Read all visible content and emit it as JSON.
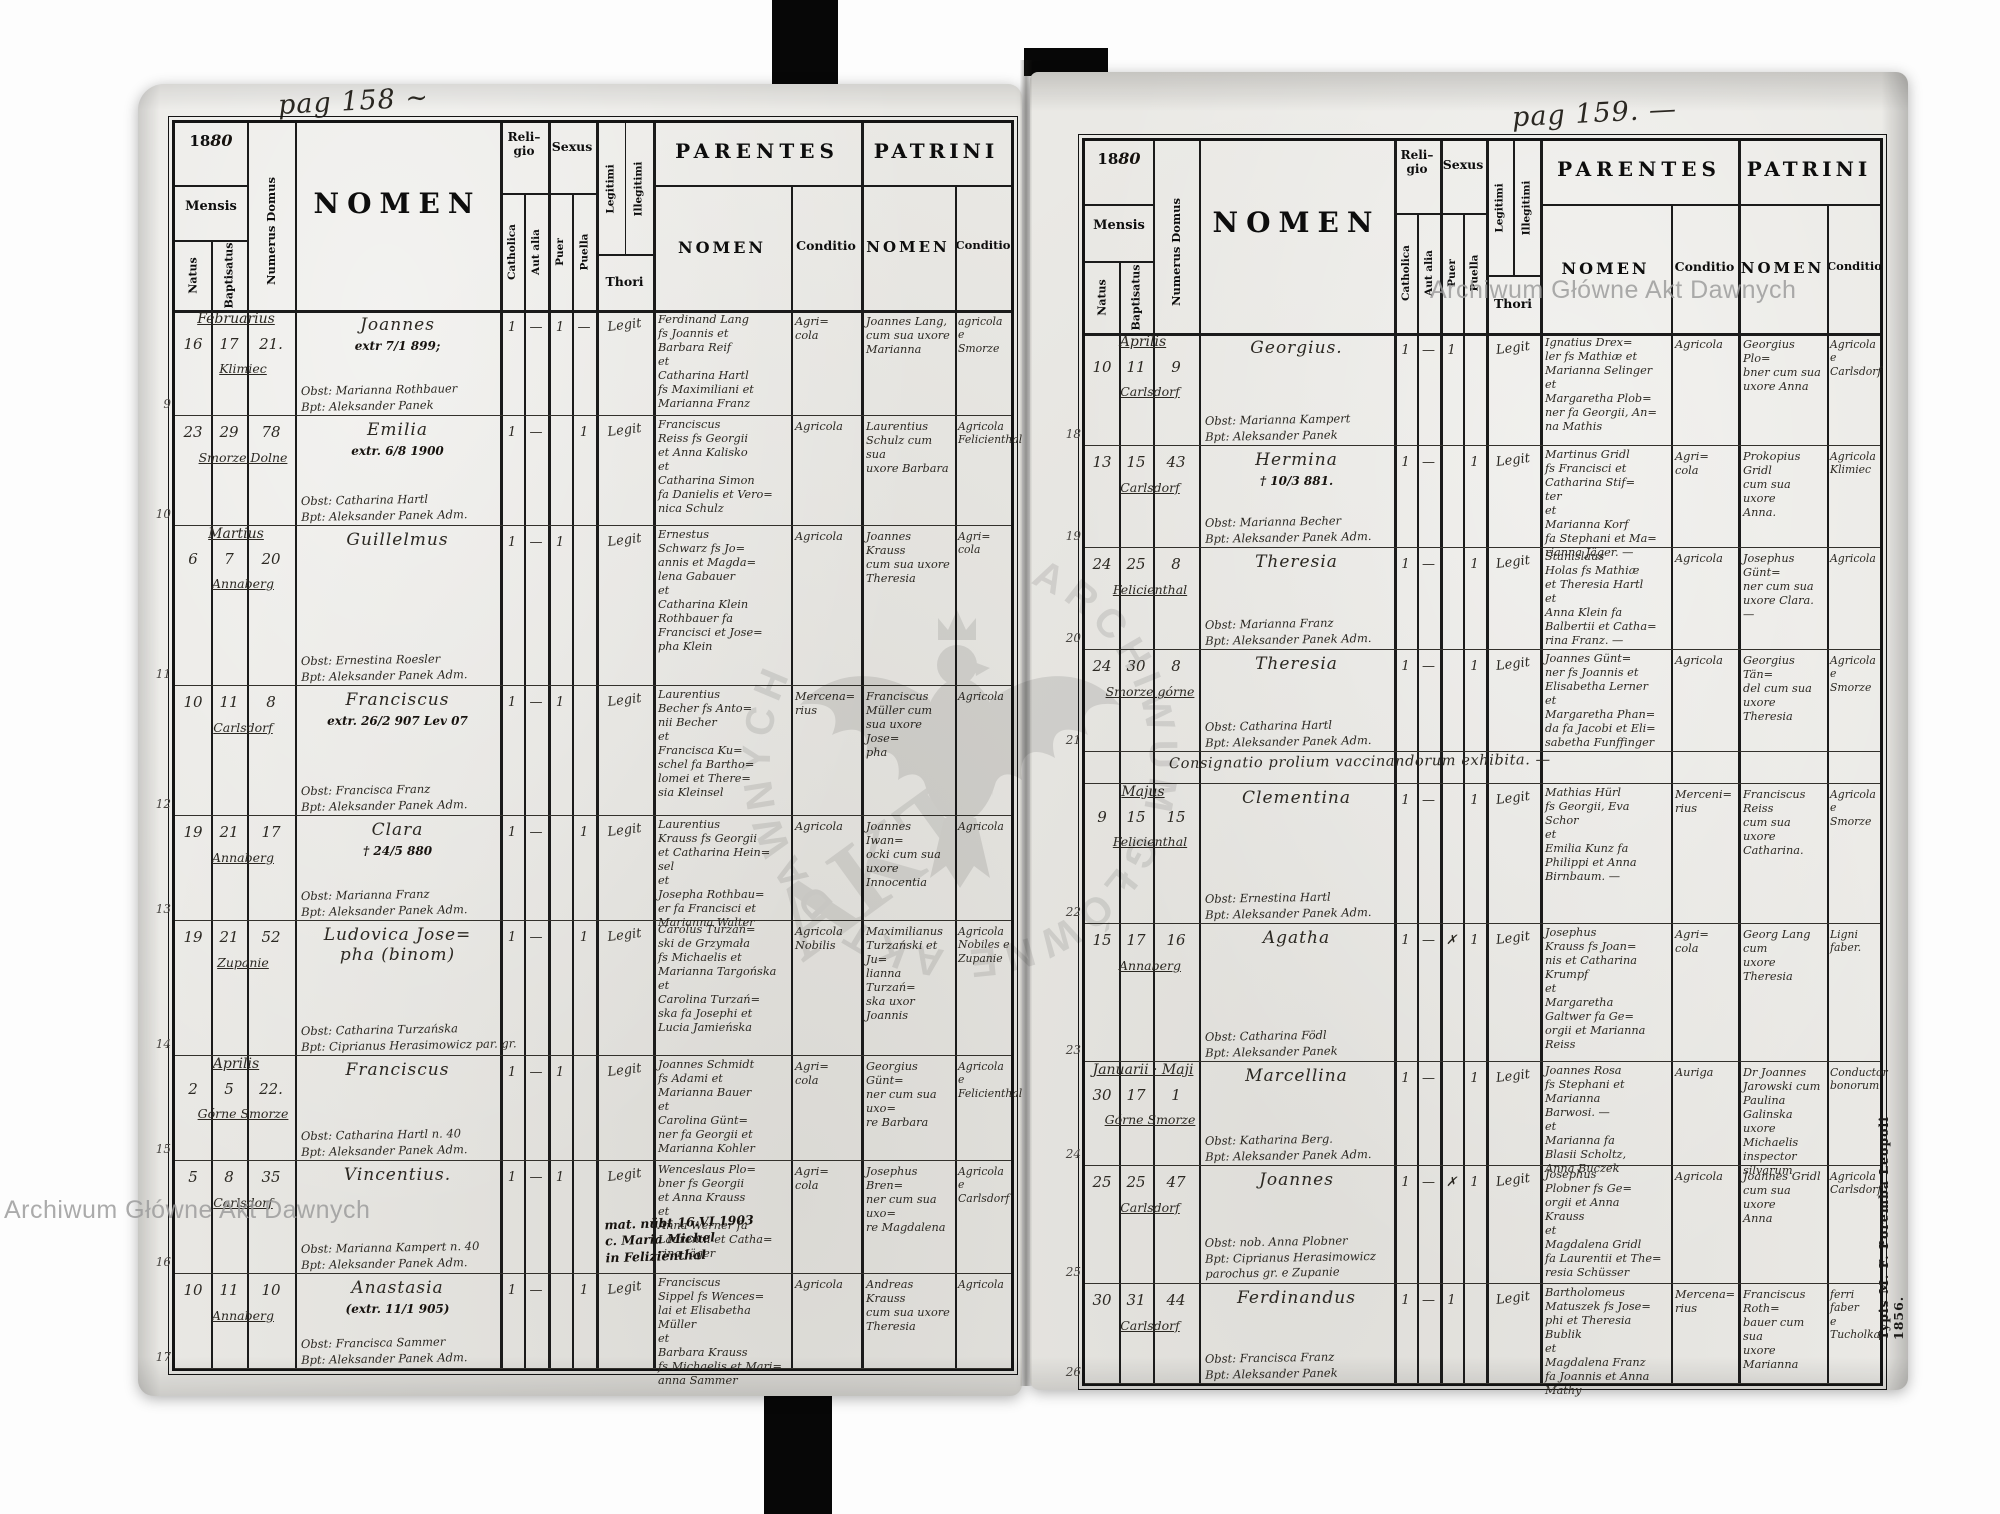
{
  "headers": {
    "year_printed": "18",
    "year_written": "80",
    "mensis": "Mensis",
    "natus": "Natus",
    "baptisatus": "Baptisatus",
    "numerus_domus": "Numerus Domus",
    "nomen": "NOMEN",
    "religio_line1": "Reli–",
    "religio_line2": "gio",
    "catholica": "Catholica",
    "aut_alia": "Aut alia",
    "sexus": "Sexus",
    "puer": "Puer",
    "puella": "Puella",
    "legitimi": "Legitimi",
    "illegitimi": "Illegitimi",
    "thori": "Thori",
    "parentes": "PARENTES",
    "patrini": "PATRINI",
    "sub_nomen": "NOMEN",
    "conditio": "Conditio"
  },
  "left_page": {
    "page_label": "pag 158 ∼",
    "rows": [
      {
        "no": "9",
        "month": "Februarius",
        "natus": "16",
        "baptisatus": "17",
        "domus": "21.",
        "place": "Klimiec",
        "name": "Joannes",
        "name_note": "extr 7/1 899;",
        "obst": "Obst: Marianna Rothbauer",
        "bpt": "Bpt: Aleksander Panek",
        "cath": "1",
        "alia": "—",
        "puer": "1",
        "puella": "—",
        "legit": "Legit",
        "parentes": "Ferdinand Lang\nfs Joannis et\nBarbara Reif\net\nCatharina Hartl\nfs Maximiliani et\nMarianna Franz",
        "par_cond": "Agri=\ncola",
        "patrini": "Joannes Lang,\ncum sua uxore\nMarianna",
        "pat_cond": "agricola e\nSmorze"
      },
      {
        "no": "10",
        "natus": "23",
        "baptisatus": "29",
        "domus": "78",
        "place": "Smorze Dolne",
        "name": "Emilia",
        "name_note": "extr. 6/8 1900",
        "obst": "Obst: Catharina Hartl",
        "bpt": "Bpt: Aleksander Panek Adm.",
        "cath": "1",
        "alia": "—",
        "puella": "1",
        "legit": "Legit",
        "parentes": "Franciscus\nReiss fs Georgii\net Anna Kalisko\net\nCatharina Simon\nfa Danielis et Vero=\nnica Schulz",
        "par_cond": "Agricola",
        "patrini": "Laurentius\nSchulz cum sua\nuxore Barbara",
        "pat_cond": "Agricola\nFelicienthal"
      },
      {
        "no": "11",
        "month": "Martius",
        "natus": "6",
        "baptisatus": "7",
        "domus": "20",
        "place": "Annaberg",
        "name": "Guillelmus",
        "obst": "Obst: Ernestina Roesler",
        "bpt": "Bpt: Aleksander Panek Adm.",
        "cath": "1",
        "alia": "—",
        "puer": "1",
        "legit": "Legit",
        "parentes": "Ernestus\nSchwarz fs Jo=\nannis et Magda=\nlena Gabauer\net\nCatharina Klein\nRothbauer fa\nFrancisci et Jose=\npha Klein",
        "par_cond": "Agricola",
        "patrini": "Joannes Krauss\ncum sua uxore\nTheresia",
        "pat_cond": "Agri=\ncola"
      },
      {
        "no": "12",
        "natus": "10",
        "baptisatus": "11",
        "domus": "8",
        "place": "Carlsdorf",
        "name": "Franciscus",
        "name_note": "extr. 26/2 907 Lev 07",
        "obst": "Obst: Francisca Franz",
        "bpt": "Bpt: Aleksander Panek Adm.",
        "cath": "1",
        "alia": "—",
        "puer": "1",
        "legit": "Legit",
        "parentes": "Laurentius\nBecher fs Anto=\nnii Becher\net\nFrancisca Ku=\nschel fa Bartho=\nlomei et There=\nsia Kleinsel",
        "par_cond": "Mercena=\nrius",
        "patrini": "Franciscus\nMüller cum\nsua uxore Jose=\npha",
        "pat_cond": "Agricola"
      },
      {
        "no": "13",
        "natus": "19",
        "baptisatus": "21",
        "domus": "17",
        "place": "Annaberg",
        "name": "Clara",
        "name_note": "† 24/5 880",
        "obst": "Obst: Marianna Franz",
        "bpt": "Bpt: Aleksander Panek Adm.",
        "cath": "1",
        "alia": "—",
        "puella": "1",
        "legit": "Legit",
        "parentes": "Laurentius\nKrauss fs Georgii\net Catharina Hein=\nsel\net\nJosepha Rothbau=\ner fa Francisci et\nMarianna Walter",
        "par_cond": "Agricola",
        "patrini": "Joannes Iwan=\nocki cum sua uxore\nInnocentia",
        "pat_cond": "Agricola"
      },
      {
        "no": "14",
        "natus": "19",
        "baptisatus": "21",
        "domus": "52",
        "place": "Zupanie",
        "name": "Ludovica Jose=\npha (binom)",
        "obst": "Obst: Catharina Turzańska",
        "bpt": "Bpt: Ciprianus Herasimowicz par. gr.",
        "cath": "1",
        "alia": "—",
        "puella": "1",
        "legit": "Legit",
        "parentes": "Carolus Turzań=\nski de Grzymała\nfs Michaelis et\nMarianna Targońska\net\nCarolina Turzań=\nska fa Josephi et\nLucia Jamieńska",
        "par_cond": "Agricola\nNobilis",
        "patrini": "Maximilianus\nTurzański et Ju=\nlianna Turzań=\nska uxor Joannis",
        "pat_cond": "Agricola\nNobiles e\nZupanie"
      },
      {
        "no": "15",
        "month": "Aprilis",
        "natus": "2",
        "baptisatus": "5",
        "domus": "22.",
        "place": "Górne Smorze",
        "name": "Franciscus",
        "obst": "Obst: Catharina Hartl n. 40",
        "bpt": "Bpt: Aleksander Panek Adm.",
        "cath": "1",
        "alia": "—",
        "puer": "1",
        "legit": "Legit",
        "parentes": "Joannes Schmidt\nfs Adami et\nMarianna Bauer\net\nCarolina Günt=\nner fa Georgii et\nMarianna Kohler",
        "par_cond": "Agri=\ncola",
        "patrini": "Georgius Günt=\nner cum sua uxo=\nre Barbara",
        "pat_cond": "Agricola\ne\nFelicienthal"
      },
      {
        "no": "16",
        "natus": "5",
        "baptisatus": "8",
        "domus": "35",
        "place": "Carlsdorf",
        "name": "Vincentius.",
        "obst": "Obst: Marianna Kampert n. 40",
        "bpt": "Bpt: Aleksander Panek Adm.",
        "cath": "1",
        "alia": "—",
        "puer": "1",
        "legit": "Legit",
        "parentes": "Wenceslaus Plo=\nbner fs Georgii\net Anna Krauss\net\nAnna Werner fa\nLaurentii et Catha=\nrina Jäger",
        "par_cond": "Agri=\ncola",
        "patrini": "Josephus Bren=\nner cum sua uxo=\nre Magdalena",
        "pat_cond": "Agricola\ne Carlsdorf",
        "note": "mat. nübt 16.VI 1903\nc. Maria Michel\nin Felizienthal"
      },
      {
        "no": "17",
        "natus": "10",
        "baptisatus": "11",
        "domus": "10",
        "place": "Annaberg",
        "name": "Anastasia",
        "name_note": "(extr. 11/1 905)",
        "obst": "Obst: Francisca Sammer",
        "bpt": "Bpt: Aleksander Panek Adm.",
        "cath": "1",
        "alia": "—",
        "puella": "1",
        "legit": "Legit",
        "parentes": "Franciscus\nSippel fs Wences=\nlai et Elisabetha Müller\net\nBarbara Krauss\nfs Michaelis et Mari=\nanna Sammer",
        "par_cond": "Agricola",
        "patrini": "Andreas Krauss\ncum sua uxore\nTheresia",
        "pat_cond": "Agricola"
      }
    ]
  },
  "right_page": {
    "page_label": "pag 159. —",
    "imprint": "Typis M. F. Poremba Leopoli 1856.",
    "rows": [
      {
        "no": "18",
        "month": "Aprilis",
        "natus": "10",
        "baptisatus": "11",
        "domus": "9",
        "place": "Carlsdorf",
        "name": "Georgius.",
        "obst": "Obst: Marianna Kampert",
        "bpt": "Bpt: Aleksander Panek",
        "cath": "1",
        "alia": "—",
        "puer": "1",
        "legit": "Legit",
        "parentes": "Ignatius Drex=\nler fs Mathiæ et\nMarianna Selinger\net\nMargaretha Plob=\nner fa Georgii, An=\nna Mathis",
        "par_cond": "Agricola",
        "patrini": "Georgius Plo=\nbner cum sua\nuxore Anna",
        "pat_cond": "Agricola\ne\nCarlsdorf"
      },
      {
        "no": "19",
        "natus": "13",
        "baptisatus": "15",
        "domus": "43",
        "place": "Carlsdorf",
        "name": "Hermina",
        "name_note": "† 10/3 881.",
        "obst": "Obst: Marianna Becher",
        "bpt": "Bpt: Aleksander Panek Adm.",
        "cath": "1",
        "alia": "—",
        "puella": "1",
        "legit": "Legit",
        "parentes": "Martinus Gridl\nfs Francisci et\nCatharina Stif=\nter\net\nMarianna Korf\nfa Stephani et Ma=\nrianna Jäger. —",
        "par_cond": "Agri=\ncola",
        "patrini": "Prokopius Gridl\ncum sua uxore\nAnna.",
        "pat_cond": "Agricola\nKlimiec"
      },
      {
        "no": "20",
        "natus": "24",
        "baptisatus": "25",
        "domus": "8",
        "place": "Felicienthal",
        "name": "Theresia",
        "obst": "Obst: Marianna Franz",
        "bpt": "Bpt: Aleksander Panek Adm.",
        "cath": "1",
        "alia": "—",
        "puella": "1",
        "legit": "Legit",
        "parentes": "Stanislaus\nHolas fs Mathiæ\net Theresia Hartl\net\nAnna Klein fa\nBalbertii et Catha=\nrina Franz. —",
        "par_cond": "Agricola",
        "patrini": "Josephus Günt=\nner cum sua\nuxore Clara. —",
        "pat_cond": "Agricola"
      },
      {
        "no": "21",
        "natus": "24",
        "baptisatus": "30",
        "domus": "8",
        "place": "Smorze górne",
        "name": "Theresia",
        "obst": "Obst: Catharina Hartl",
        "bpt": "Bpt: Aleksander Panek Adm.",
        "cath": "1",
        "alia": "—",
        "puella": "1",
        "legit": "Legit",
        "parentes": "Joannes Günt=\nner fs Joannis et\nElisabetha Lerner\net\nMargaretha Phan=\nda fa Jacobi et Eli=\nsabetha Funffinger",
        "par_cond": "Agricola",
        "patrini": "Georgius Tän=\ndel cum sua\nuxore Theresia",
        "pat_cond": "Agricola\ne\nSmorze"
      },
      {
        "type": "note",
        "no": "",
        "text": "Consignatio prolium vaccinandorum exhibita. —"
      },
      {
        "no": "22",
        "month": "Majus",
        "natus": "9",
        "baptisatus": "15",
        "domus": "15",
        "place": "Felicienthal",
        "name": "Clementina",
        "obst": "Obst: Ernestina Hartl",
        "bpt": "Bpt: Aleksander Panek Adm.",
        "cath": "1",
        "alia": "—",
        "puella": "1",
        "legit": "Legit",
        "parentes": "Mathias Hürl\nfs Georgii, Eva\nSchor\net\nEmilia Kunz fa\nPhilippi et Anna\nBirnbaum. —",
        "par_cond": "Merceni=\nrius",
        "patrini": "Franciscus Reiss\ncum sua uxore\nCatharina.",
        "pat_cond": "Agricola\ne\nSmorze"
      },
      {
        "no": "23",
        "natus": "15",
        "baptisatus": "17",
        "domus": "16",
        "place": "Annaberg",
        "name": "Agatha",
        "obst": "Obst: Catharina Födl",
        "bpt": "Bpt: Aleksander Panek",
        "cath": "1",
        "alia": "—",
        "puer": "✗",
        "puella": "1",
        "legit": "Legit",
        "parentes": "Josephus\nKrauss fs Joan=\nnis et Catharina\nKrumpf\net\nMargaretha\nGaltwer fa Ge=\norgii et Marianna\nReiss",
        "par_cond": "Agri=\ncola",
        "patrini": "Georg Lang cum\nuxore\nTheresia",
        "pat_cond": "Ligni\nfaber."
      },
      {
        "no": "24",
        "month": "Januarii · Maji",
        "natus": "30",
        "baptisatus": "17",
        "domus": "1",
        "place": "Górne Smorze",
        "name": "Marcellina",
        "obst": "Obst: Katharina Berg.",
        "bpt": "Bpt: Aleksander Panek Adm.",
        "cath": "1",
        "alia": "—",
        "puella": "1",
        "legit": "Legit",
        "parentes": "Joannes Rosa\nfs Stephani et\nMarianna\nBarwosi. —\net\nMarianna fa\nBlasii Scholtz,\nAnna Buczek",
        "par_cond": "Auriga",
        "patrini": "Dr Joannes\nJarowski cum\nPaulina\nGalinska uxore\nMichaelis\ninspector silvarum",
        "pat_cond": "Conductor\nbonorum"
      },
      {
        "no": "25",
        "natus": "25",
        "baptisatus": "25",
        "domus": "47",
        "place": "Carlsdorf",
        "name": "Joannes",
        "obst": "Obst: nob. Anna Plobner",
        "bpt": "Bpt: Ciprianus Herasimowicz\nparochus gr. e Zupanie",
        "cath": "1",
        "alia": "—",
        "puer": "✗",
        "puella": "1",
        "legit": "Legit",
        "parentes": "Josephus\nPlobner fs Ge=\norgii et Anna\nKrauss\net\nMagdalena Gridl\nfa Laurentii et The=\nresia Schüsser",
        "par_cond": "Agricola",
        "patrini": "Joannes Gridl\ncum sua uxore\nAnna",
        "pat_cond": "Agricola\nCarlsdorf"
      },
      {
        "no": "26",
        "natus": "30",
        "baptisatus": "31",
        "domus": "44",
        "place": "Carlsdorf",
        "name": "Ferdinandus",
        "obst": "Obst: Francisca Franz",
        "bpt": "Bpt: Aleksander Panek",
        "cath": "1",
        "alia": "—",
        "puer": "1",
        "legit": "Legit",
        "parentes": "Bartholomeus\nMatuszek fs Jose=\nphi et Theresia Bublik\net\nMagdalena Franz\nfa Joannis et Anna\nMathy",
        "par_cond": "Mercena=\nrius",
        "patrini": "Franciscus Roth=\nbauer cum sua\nuxore Marianna",
        "pat_cond": "ferri faber\ne\nTucholka"
      }
    ]
  },
  "watermarks": {
    "overlay_text": "Archiwum Główne Akt Dawnych",
    "seal_ring_text": "ARCHIWUM GŁÓWNE AKT DAWNYCH",
    "seal_diagonal": "AKT"
  }
}
